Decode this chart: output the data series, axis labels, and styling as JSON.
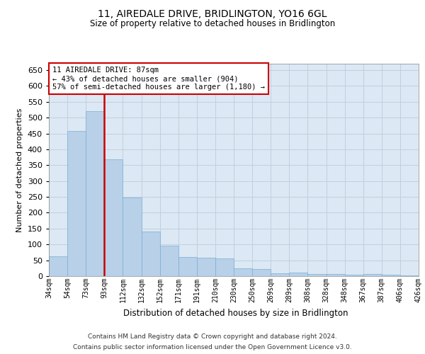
{
  "title": "11, AIREDALE DRIVE, BRIDLINGTON, YO16 6GL",
  "subtitle": "Size of property relative to detached houses in Bridlington",
  "xlabel": "Distribution of detached houses by size in Bridlington",
  "ylabel": "Number of detached properties",
  "bar_values": [
    62,
    457,
    521,
    369,
    248,
    140,
    95,
    60,
    57,
    55,
    25,
    23,
    10,
    12,
    7,
    6,
    5,
    6,
    5,
    3
  ],
  "bar_labels": [
    "34sqm",
    "54sqm",
    "73sqm",
    "93sqm",
    "112sqm",
    "132sqm",
    "152sqm",
    "171sqm",
    "191sqm",
    "210sqm",
    "230sqm",
    "250sqm",
    "269sqm",
    "289sqm",
    "308sqm",
    "328sqm",
    "348sqm",
    "367sqm",
    "387sqm",
    "406sqm",
    "426sqm"
  ],
  "bar_color": "#b8d0e8",
  "bar_edge_color": "#7aafd4",
  "grid_color": "#c0d0e0",
  "background_color": "#dce8f4",
  "vline_x": 2,
  "vline_color": "#cc0000",
  "annotation_text": "11 AIREDALE DRIVE: 87sqm\n← 43% of detached houses are smaller (904)\n57% of semi-detached houses are larger (1,180) →",
  "annotation_box_color": "#cc0000",
  "ylim": [
    0,
    670
  ],
  "yticks": [
    0,
    50,
    100,
    150,
    200,
    250,
    300,
    350,
    400,
    450,
    500,
    550,
    600,
    650
  ],
  "footer_line1": "Contains HM Land Registry data © Crown copyright and database right 2024.",
  "footer_line2": "Contains public sector information licensed under the Open Government Licence v3.0."
}
